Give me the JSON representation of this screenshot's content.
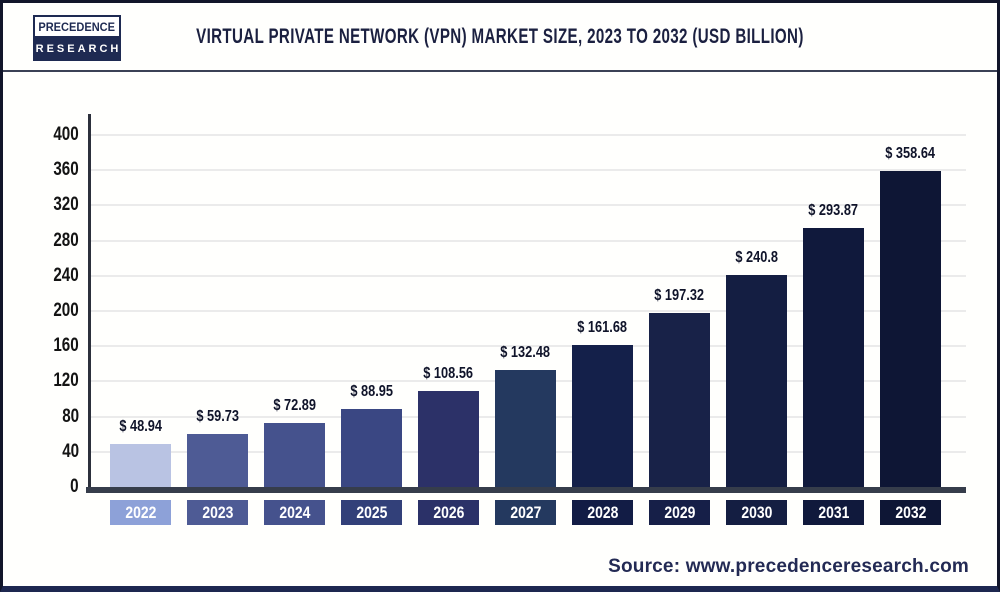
{
  "header": {
    "logo": {
      "top": "PRECEDENCE",
      "bottom": "RESEARCH"
    },
    "title": "VIRTUAL PRIVATE NETWORK (VPN) MARKET SIZE, 2023 TO 2032 (USD BILLION)"
  },
  "footer": {
    "source": "Source: www.precedenceresearch.com"
  },
  "chart_data": {
    "type": "bar",
    "title": "Virtual Private Network (VPN) Market Size, 2023 to 2032 (USD Billion)",
    "unit": "USD Billion",
    "categories": [
      "2022",
      "2023",
      "2024",
      "2025",
      "2026",
      "2027",
      "2028",
      "2029",
      "2030",
      "2031",
      "2032"
    ],
    "values": [
      48.94,
      59.73,
      72.89,
      88.95,
      108.56,
      132.48,
      161.68,
      197.32,
      240.8,
      293.87,
      358.64
    ],
    "value_labels": [
      "$ 48.94",
      "$ 59.73",
      "$ 72.89",
      "$ 88.95",
      "$ 108.56",
      "$ 132.48",
      "$ 161.68",
      "$ 197.32",
      "$ 240.8",
      "$ 293.87",
      "$ 358.64"
    ],
    "bar_colors": [
      "#b9c3e3",
      "#4e5b95",
      "#45528d",
      "#3a4783",
      "#2c3168",
      "#24395f",
      "#14204a",
      "#182248",
      "#141e42",
      "#10193c",
      "#0e1635"
    ],
    "label_box_colors": [
      "#8da1d8",
      "#4e5b95",
      "#45528d",
      "#324079",
      "#2b3168",
      "#24395f",
      "#121c45",
      "#161f48",
      "#141e42",
      "#10193c",
      "#0e1635"
    ],
    "xlabel": "",
    "ylabel": "",
    "ylim": [
      0,
      400
    ],
    "ytick_step": 40,
    "yticks": [
      0,
      40,
      80,
      120,
      160,
      200,
      240,
      280,
      320,
      360,
      400
    ],
    "grid": "horizontal",
    "legend": null
  },
  "colors": {
    "accent_navy": "#1e2a52",
    "title_text": "#1b2040",
    "tick_text": "#141414",
    "gridline": "#ebebeb",
    "axis_line": "#2c303c",
    "baseline": "#363d4b",
    "year_text": "#ffffff",
    "source_text": "#232a54",
    "frame_border": "#11152a",
    "bottom_border": "#1d2750"
  }
}
